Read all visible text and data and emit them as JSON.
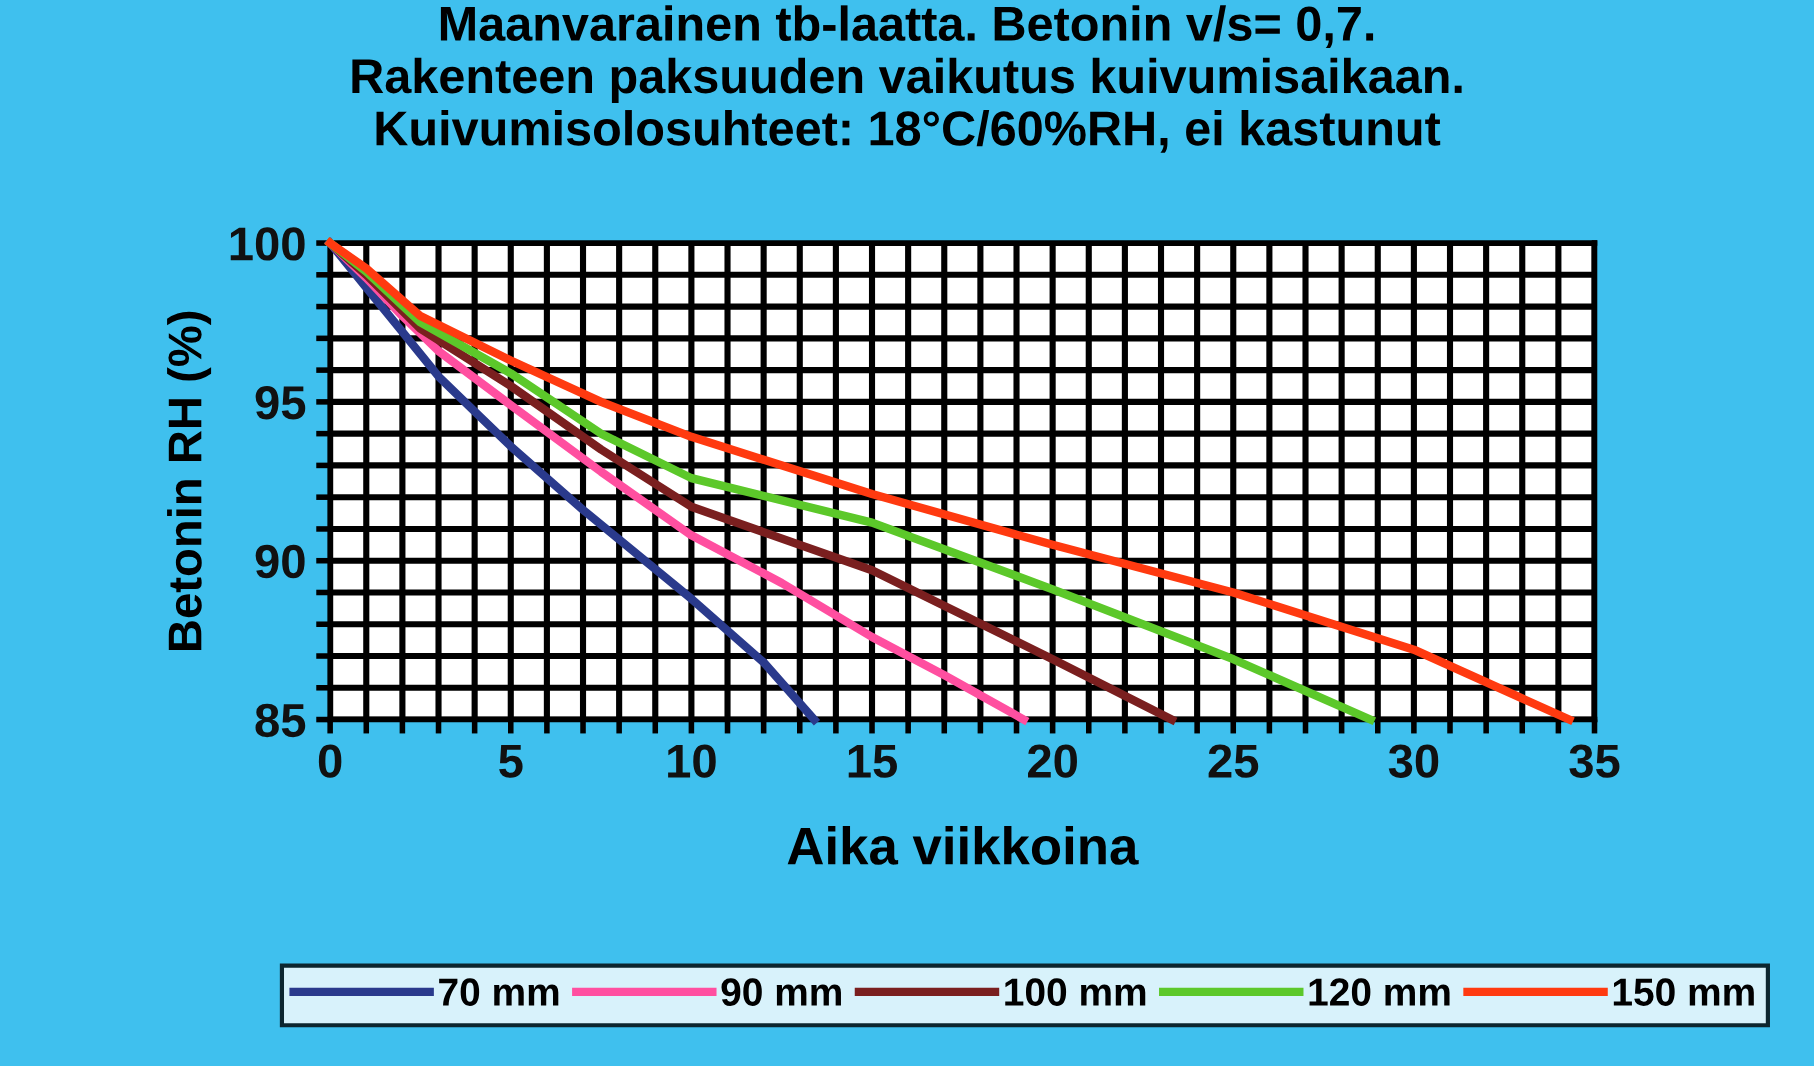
{
  "chart_data": {
    "type": "line",
    "title": "Maanvarainen tb-laatta. Betonin v/s= 0,7.\nRakenteen paksuuden vaikutus kuivumisaikaan.\nKuivumisolosuhteet: 18°C/60%RH, ei kastunut",
    "xlabel": "Aika viikkoina",
    "ylabel": "Betonin RH (%)",
    "xlim": [
      0,
      35
    ],
    "ylim": [
      85,
      100
    ],
    "xticks": [
      0,
      {
        "value": 1,
        "label": null
      },
      {
        "value": 2,
        "label": null
      },
      {
        "value": 3,
        "label": null
      },
      {
        "value": 4,
        "label": null
      },
      5,
      {
        "value": 6,
        "label": null
      },
      {
        "value": 7,
        "label": null
      },
      {
        "value": 8,
        "label": null
      },
      {
        "value": 9,
        "label": null
      },
      10,
      {
        "value": 11,
        "label": null
      },
      {
        "value": 12,
        "label": null
      },
      {
        "value": 13,
        "label": null
      },
      {
        "value": 14,
        "label": null
      },
      15,
      {
        "value": 16,
        "label": null
      },
      {
        "value": 17,
        "label": null
      },
      {
        "value": 18,
        "label": null
      },
      {
        "value": 19,
        "label": null
      },
      20,
      {
        "value": 21,
        "label": null
      },
      {
        "value": 22,
        "label": null
      },
      {
        "value": 23,
        "label": null
      },
      {
        "value": 24,
        "label": null
      },
      25,
      {
        "value": 26,
        "label": null
      },
      {
        "value": 27,
        "label": null
      },
      {
        "value": 28,
        "label": null
      },
      {
        "value": 29,
        "label": null
      },
      30,
      {
        "value": 31,
        "label": null
      },
      {
        "value": 32,
        "label": null
      },
      {
        "value": 33,
        "label": null
      },
      {
        "value": 34,
        "label": null
      },
      35
    ],
    "yticks": [
      85,
      {
        "value": 86,
        "label": null
      },
      {
        "value": 87,
        "label": null
      },
      {
        "value": 88,
        "label": null
      },
      {
        "value": 89,
        "label": null
      },
      90,
      {
        "value": 91,
        "label": null
      },
      {
        "value": 92,
        "label": null
      },
      {
        "value": 93,
        "label": null
      },
      {
        "value": 94,
        "label": null
      },
      95,
      {
        "value": 96,
        "label": null
      },
      {
        "value": 97,
        "label": null
      },
      {
        "value": 98,
        "label": null
      },
      {
        "value": 99,
        "label": null
      },
      100
    ],
    "grid": true,
    "legend": "bottom",
    "marker": "none",
    "line_style": "solid",
    "series": [
      {
        "name": "70 mm",
        "color": "#2a3a8c",
        "x": [
          0,
          1,
          2,
          3,
          4,
          5,
          7,
          10,
          12,
          13.4
        ],
        "values": [
          100,
          98.6,
          97.2,
          95.8,
          94.7,
          93.6,
          91.6,
          88.8,
          86.8,
          85
        ]
      },
      {
        "name": "90 mm",
        "color": "#ff4fa0",
        "x": [
          0,
          1,
          2,
          3,
          5,
          7.5,
          10,
          12.5,
          15,
          17,
          19.2
        ],
        "values": [
          100,
          98.9,
          97.7,
          96.6,
          94.9,
          92.8,
          90.8,
          89.3,
          87.6,
          86.4,
          85
        ]
      },
      {
        "name": "100 mm",
        "color": "#7a1f1f",
        "x": [
          0,
          1,
          2.5,
          5,
          7.5,
          10,
          15,
          20,
          23.3
        ],
        "values": [
          100,
          99.0,
          97.3,
          95.5,
          93.5,
          91.7,
          89.7,
          86.9,
          85
        ]
      },
      {
        "name": "120 mm",
        "color": "#5cc82a",
        "x": [
          0,
          1,
          2.5,
          5,
          7.5,
          10,
          15,
          20,
          25,
          28.8
        ],
        "values": [
          100,
          99.1,
          97.5,
          95.9,
          94.0,
          92.6,
          91.2,
          89.1,
          86.9,
          85
        ]
      },
      {
        "name": "150 mm",
        "color": "#ff3a10",
        "x": [
          0,
          1,
          2.5,
          5,
          7.5,
          10,
          15,
          20,
          25,
          30,
          34.3
        ],
        "values": [
          100,
          99.2,
          97.7,
          96.3,
          95.0,
          93.9,
          92.1,
          90.5,
          89.0,
          87.2,
          85
        ]
      }
    ]
  }
}
